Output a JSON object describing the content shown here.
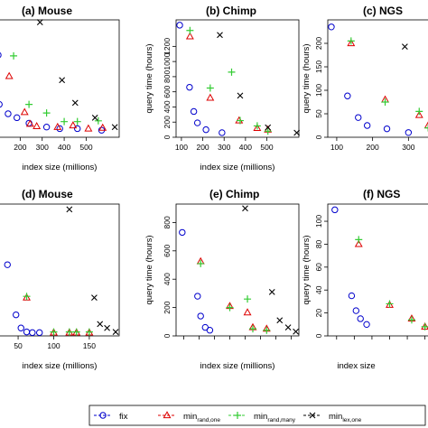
{
  "chart_data": [
    {
      "type": "scatter",
      "title": "(a) Mouse",
      "xlabel": "index size (millions)",
      "ylabel": "",
      "xticks": [
        100,
        200,
        300,
        400,
        500
      ],
      "xticklabels": [
        "",
        "200",
        "300",
        "400",
        "500"
      ],
      "yticks": [],
      "xlim": [
        100,
        650
      ],
      "ylim": [
        0,
        1500
      ],
      "series": [
        {
          "name": "fix",
          "marker": "circle",
          "color": "#0000cc",
          "points": [
            [
              100,
              1050
            ],
            [
              105,
              420
            ],
            [
              145,
              300
            ],
            [
              185,
              250
            ],
            [
              240,
              180
            ],
            [
              320,
              130
            ],
            [
              380,
              110
            ],
            [
              460,
              110
            ],
            [
              570,
              90
            ]
          ]
        },
        {
          "name": "min_rand,one",
          "marker": "triangle",
          "color": "#dd0000",
          "points": [
            [
              150,
              780
            ],
            [
              220,
              320
            ],
            [
              245,
              170
            ],
            [
              275,
              140
            ],
            [
              370,
              130
            ],
            [
              440,
              150
            ],
            [
              510,
              110
            ],
            [
              575,
              120
            ]
          ]
        },
        {
          "name": "min_rand,many",
          "marker": "plus",
          "color": "#33cc33",
          "points": [
            [
              170,
              1040
            ],
            [
              240,
              420
            ],
            [
              320,
              310
            ],
            [
              400,
              200
            ],
            [
              460,
              200
            ],
            [
              555,
              210
            ]
          ]
        },
        {
          "name": "min_lex,one",
          "marker": "cross",
          "color": "#000000",
          "points": [
            [
              290,
              1470
            ],
            [
              390,
              730
            ],
            [
              450,
              440
            ],
            [
              540,
              250
            ],
            [
              630,
              130
            ]
          ]
        }
      ]
    },
    {
      "type": "scatter",
      "title": "(b) Chimp",
      "xlabel": "index size (millions)",
      "ylabel": "query time (hours)",
      "xticks": [
        100,
        200,
        300,
        400,
        500
      ],
      "xticklabels": [
        "100",
        "200",
        "300",
        "400",
        "500"
      ],
      "yticks": [
        0,
        200,
        400,
        600,
        800,
        1000,
        1200
      ],
      "ylim": [
        0,
        1550
      ],
      "xlim": [
        75,
        650
      ],
      "series": [
        {
          "name": "fix",
          "marker": "circle",
          "color": "#0000cc",
          "points": [
            [
              92,
              1480
            ],
            [
              138,
              660
            ],
            [
              158,
              340
            ],
            [
              175,
              190
            ],
            [
              215,
              100
            ],
            [
              290,
              60
            ]
          ]
        },
        {
          "name": "min_rand,one",
          "marker": "triangle",
          "color": "#dd0000",
          "points": [
            [
              140,
              1330
            ],
            [
              235,
              520
            ],
            [
              370,
              220
            ],
            [
              455,
              120
            ],
            [
              505,
              100
            ]
          ]
        },
        {
          "name": "min_rand,many",
          "marker": "plus",
          "color": "#33cc33",
          "points": [
            [
              140,
              1410
            ],
            [
              235,
              650
            ],
            [
              335,
              860
            ],
            [
              375,
              220
            ],
            [
              455,
              150
            ],
            [
              505,
              80
            ]
          ]
        },
        {
          "name": "min_lex,one",
          "marker": "cross",
          "color": "#000000",
          "points": [
            [
              280,
              1350
            ],
            [
              375,
              550
            ],
            [
              505,
              130
            ],
            [
              640,
              60
            ]
          ]
        }
      ]
    },
    {
      "type": "scatter",
      "title": "(c) NGS",
      "xlabel": "",
      "ylabel": "query time (hours)",
      "xticks": [
        100,
        200,
        300
      ],
      "xticklabels": [
        "100",
        "200",
        "300"
      ],
      "yticks": [
        0,
        50,
        100,
        150,
        200
      ],
      "ylim": [
        0,
        250
      ],
      "xlim": [
        75,
        420
      ],
      "series": [
        {
          "name": "fix",
          "marker": "circle",
          "color": "#0000cc",
          "points": [
            [
              85,
              235
            ],
            [
              130,
              88
            ],
            [
              160,
              42
            ],
            [
              185,
              25
            ],
            [
              240,
              18
            ],
            [
              300,
              10
            ]
          ]
        },
        {
          "name": "min_rand,one",
          "marker": "triangle",
          "color": "#dd0000",
          "points": [
            [
              140,
              200
            ],
            [
              235,
              80
            ],
            [
              330,
              47
            ],
            [
              355,
              25
            ]
          ]
        },
        {
          "name": "min_rand,many",
          "marker": "plus",
          "color": "#33cc33",
          "points": [
            [
              140,
              205
            ],
            [
              235,
              75
            ],
            [
              330,
              55
            ],
            [
              355,
              20
            ]
          ]
        },
        {
          "name": "min_lex,one",
          "marker": "cross",
          "color": "#000000",
          "points": [
            [
              290,
              193
            ],
            [
              380,
              73
            ]
          ]
        }
      ]
    },
    {
      "type": "scatter",
      "title": "(d) Mouse",
      "xlabel": "index size (millions)",
      "ylabel": "",
      "xticks": [
        50,
        100,
        150
      ],
      "xticklabels": [
        "50",
        "100",
        "150"
      ],
      "yticks": [],
      "xlim": [
        22,
        192
      ],
      "ylim": [
        0,
        1000
      ],
      "series": [
        {
          "name": "fix",
          "marker": "circle",
          "color": "#0000cc",
          "points": [
            [
              35,
              540
            ],
            [
              47,
              160
            ],
            [
              54,
              60
            ],
            [
              62,
              30
            ],
            [
              70,
              25
            ],
            [
              80,
              25
            ]
          ]
        },
        {
          "name": "min_rand,one",
          "marker": "triangle",
          "color": "#dd0000",
          "points": [
            [
              62,
              290
            ],
            [
              100,
              25
            ],
            [
              122,
              25
            ],
            [
              132,
              25
            ],
            [
              150,
              25
            ]
          ]
        },
        {
          "name": "min_rand,many",
          "marker": "plus",
          "color": "#33cc33",
          "points": [
            [
              62,
              300
            ],
            [
              100,
              30
            ],
            [
              122,
              30
            ],
            [
              132,
              30
            ],
            [
              150,
              30
            ]
          ]
        },
        {
          "name": "min_lex,one",
          "marker": "cross",
          "color": "#000000",
          "points": [
            [
              122,
              960
            ],
            [
              157,
              290
            ],
            [
              165,
              90
            ],
            [
              175,
              60
            ],
            [
              187,
              30
            ]
          ]
        }
      ]
    },
    {
      "type": "scatter",
      "title": "(e) Chimp",
      "xlabel": "index size (millions)",
      "ylabel": "query time (hours)",
      "xticks": [
        40,
        60,
        80,
        100,
        120,
        140,
        160,
        180
      ],
      "xticklabels": [
        "",
        "",
        "",
        "",
        "",
        "",
        "",
        ""
      ],
      "yticks": [
        0,
        200,
        400,
        600,
        800
      ],
      "ylim": [
        0,
        930
      ],
      "xlim": [
        30,
        190
      ],
      "series": [
        {
          "name": "fix",
          "marker": "circle",
          "color": "#0000cc",
          "points": [
            [
              38,
              730
            ],
            [
              58,
              280
            ],
            [
              62,
              140
            ],
            [
              68,
              60
            ],
            [
              74,
              40
            ]
          ]
        },
        {
          "name": "min_rand,one",
          "marker": "triangle",
          "color": "#dd0000",
          "points": [
            [
              62,
              525
            ],
            [
              100,
              210
            ],
            [
              123,
              165
            ],
            [
              130,
              60
            ],
            [
              148,
              50
            ]
          ]
        },
        {
          "name": "min_rand,many",
          "marker": "plus",
          "color": "#33cc33",
          "points": [
            [
              62,
              510
            ],
            [
              100,
              200
            ],
            [
              123,
              260
            ],
            [
              130,
              50
            ],
            [
              148,
              40
            ]
          ]
        },
        {
          "name": "min_lex,one",
          "marker": "cross",
          "color": "#000000",
          "points": [
            [
              120,
              900
            ],
            [
              155,
              310
            ],
            [
              165,
              110
            ],
            [
              176,
              60
            ],
            [
              186,
              30
            ]
          ]
        }
      ]
    },
    {
      "type": "scatter",
      "title": "(f) NGS",
      "xlabel": "index size",
      "ylabel": "query time (hours)",
      "xticks": [
        40,
        60,
        80,
        100,
        120,
        140,
        160
      ],
      "xticklabels": [
        "",
        "",
        "",
        "",
        "",
        "",
        ""
      ],
      "yticks": [
        0,
        20,
        40,
        60,
        80,
        100
      ],
      "ylim": [
        0,
        115
      ],
      "xlim": [
        30,
        170
      ],
      "series": [
        {
          "name": "fix",
          "marker": "circle",
          "color": "#0000cc",
          "points": [
            [
              38,
              110
            ],
            [
              57,
              35
            ],
            [
              62,
              22
            ],
            [
              67,
              15
            ],
            [
              74,
              10
            ]
          ]
        },
        {
          "name": "min_rand,one",
          "marker": "triangle",
          "color": "#dd0000",
          "points": [
            [
              65,
              80
            ],
            [
              100,
              27
            ],
            [
              125,
              15
            ],
            [
              140,
              8
            ]
          ]
        },
        {
          "name": "min_rand,many",
          "marker": "plus",
          "color": "#33cc33",
          "points": [
            [
              65,
              84
            ],
            [
              100,
              28
            ],
            [
              125,
              14
            ],
            [
              140,
              8
            ]
          ]
        }
      ]
    }
  ],
  "legend": {
    "placement": "bottom",
    "items": [
      {
        "label": "fix",
        "sub": "",
        "marker": "circle",
        "color": "#0000cc"
      },
      {
        "label": "min",
        "sub": "rand,one",
        "marker": "triangle",
        "color": "#dd0000"
      },
      {
        "label": "min",
        "sub": "rand,many",
        "marker": "plus",
        "color": "#33cc33"
      },
      {
        "label": "min",
        "sub": "lex,one",
        "marker": "cross",
        "color": "#000000"
      }
    ]
  }
}
